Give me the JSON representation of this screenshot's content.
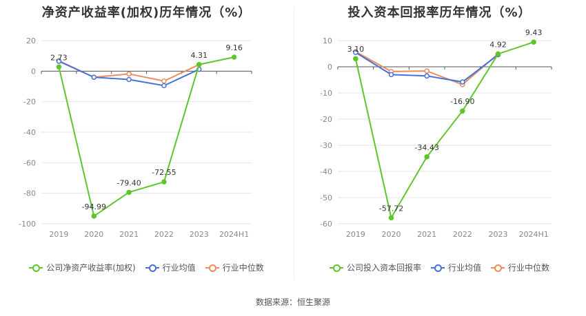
{
  "charts": [
    {
      "title": "净资产收益率(加权)历年情况（%）",
      "legend": [
        "公司净资产收益率(加权)",
        "行业均值",
        "行业中位数"
      ]
    },
    {
      "title": "投入资本回报率历年情况（%）",
      "legend": [
        "公司投入资本回报率",
        "行业均值",
        "行业中位数"
      ]
    }
  ],
  "source": "数据来源：恒生聚源",
  "colors": {
    "company": "#5cc62b",
    "industry_mean": "#4472db",
    "industry_median": "#f08a5d",
    "grid": "#e6e6e6"
  },
  "chart_data": [
    {
      "type": "line",
      "title": "净资产收益率(加权)历年情况（%）",
      "categories": [
        "2019",
        "2020",
        "2021",
        "2022",
        "2023",
        "2024H1"
      ],
      "yticks": [
        20,
        0,
        -20,
        -40,
        -60,
        -80,
        -100
      ],
      "ylim": [
        -100,
        20
      ],
      "series": [
        {
          "name": "公司净资产收益率(加权)",
          "values": [
            2.73,
            -94.99,
            -79.4,
            -72.55,
            4.31,
            9.16
          ],
          "labels": [
            "2.73",
            "-94.99",
            "-79.40",
            "-72.55",
            "4.31",
            "9.16"
          ]
        },
        {
          "name": "行业均值",
          "values": [
            6.5,
            -4.0,
            -5.5,
            -9.5,
            1.2,
            null
          ]
        },
        {
          "name": "行业中位数",
          "values": [
            6.8,
            -4.0,
            -1.8,
            -6.5,
            4.3,
            null
          ]
        }
      ],
      "legend_position": "bottom",
      "grid": true
    },
    {
      "type": "line",
      "title": "投入资本回报率历年情况（%）",
      "categories": [
        "2019",
        "2020",
        "2021",
        "2022",
        "2023",
        "2024H1"
      ],
      "yticks": [
        10,
        0,
        -10,
        -20,
        -30,
        -40,
        -50,
        -60
      ],
      "ylim": [
        -60,
        10
      ],
      "series": [
        {
          "name": "公司投入资本回报率",
          "values": [
            3.1,
            -57.72,
            -34.43,
            -16.9,
            4.92,
            9.43
          ],
          "labels": [
            "3.10",
            "-57.72",
            "-34.43",
            "-16.90",
            "4.92",
            "9.43"
          ]
        },
        {
          "name": "行业均值",
          "values": [
            5.5,
            -3.0,
            -3.5,
            -5.8,
            4.6,
            null
          ]
        },
        {
          "name": "行业中位数",
          "values": [
            5.8,
            -1.8,
            -1.6,
            -6.8,
            4.9,
            null
          ]
        }
      ],
      "legend_position": "bottom",
      "grid": true
    }
  ]
}
